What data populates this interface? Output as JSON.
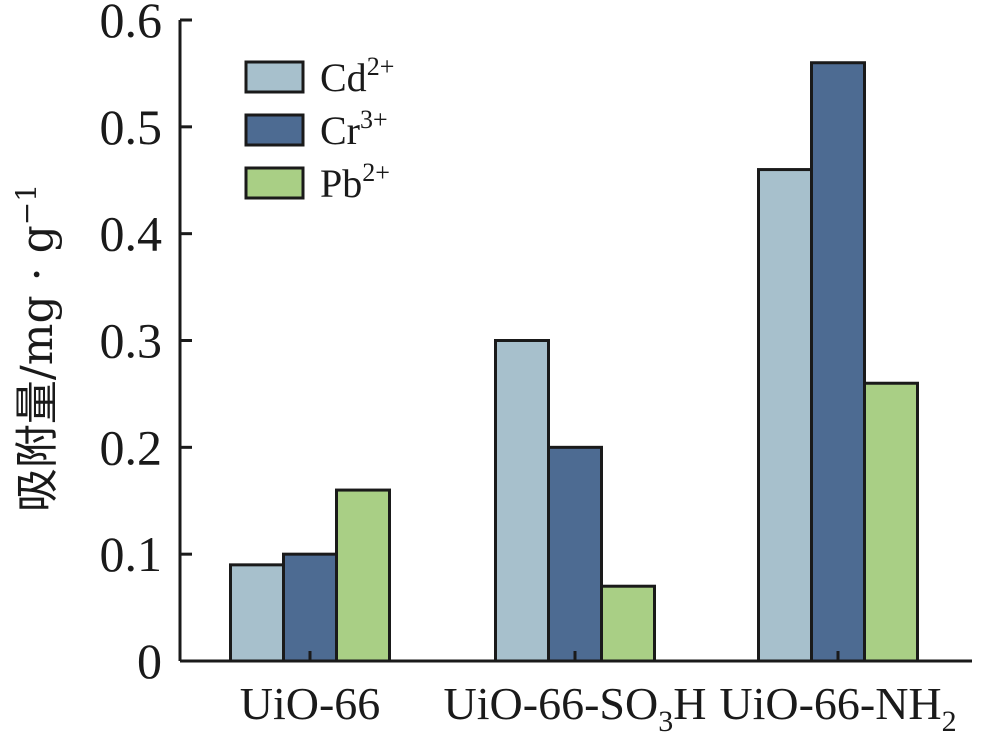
{
  "chart_data": {
    "type": "bar",
    "ylabel": "吸附量/mg·g⁻¹",
    "ylabel_parts": {
      "main": "吸附量/mg",
      "dot": "·",
      "unit": "g",
      "exp": "−1"
    },
    "xlabel": "",
    "ylim": [
      0,
      0.6
    ],
    "yticks": [
      "0",
      "0.1",
      "0.2",
      "0.3",
      "0.4",
      "0.5",
      "0.6"
    ],
    "ytick_values": [
      0,
      0.1,
      0.2,
      0.3,
      0.4,
      0.5,
      0.6
    ],
    "categories": [
      {
        "base": "UiO-66",
        "sub": "",
        "tail": ""
      },
      {
        "base": "UiO-66-SO",
        "sub": "3",
        "tail": "H"
      },
      {
        "base": "UiO-66-NH",
        "sub": "2",
        "tail": ""
      }
    ],
    "series": [
      {
        "name": "Cd2+",
        "label_base": "Cd",
        "label_sup": "2+",
        "color": "#a7c0cc",
        "values": [
          0.09,
          0.3,
          0.46
        ]
      },
      {
        "name": "Cr3+",
        "label_base": "Cr",
        "label_sup": "3+",
        "color": "#4d6b92",
        "values": [
          0.1,
          0.2,
          0.56
        ]
      },
      {
        "name": "Pb2+",
        "label_base": "Pb",
        "label_sup": "2+",
        "color": "#a9cf85",
        "values": [
          0.16,
          0.07,
          0.26
        ]
      }
    ],
    "legend_position": "top-left",
    "grid": false
  }
}
